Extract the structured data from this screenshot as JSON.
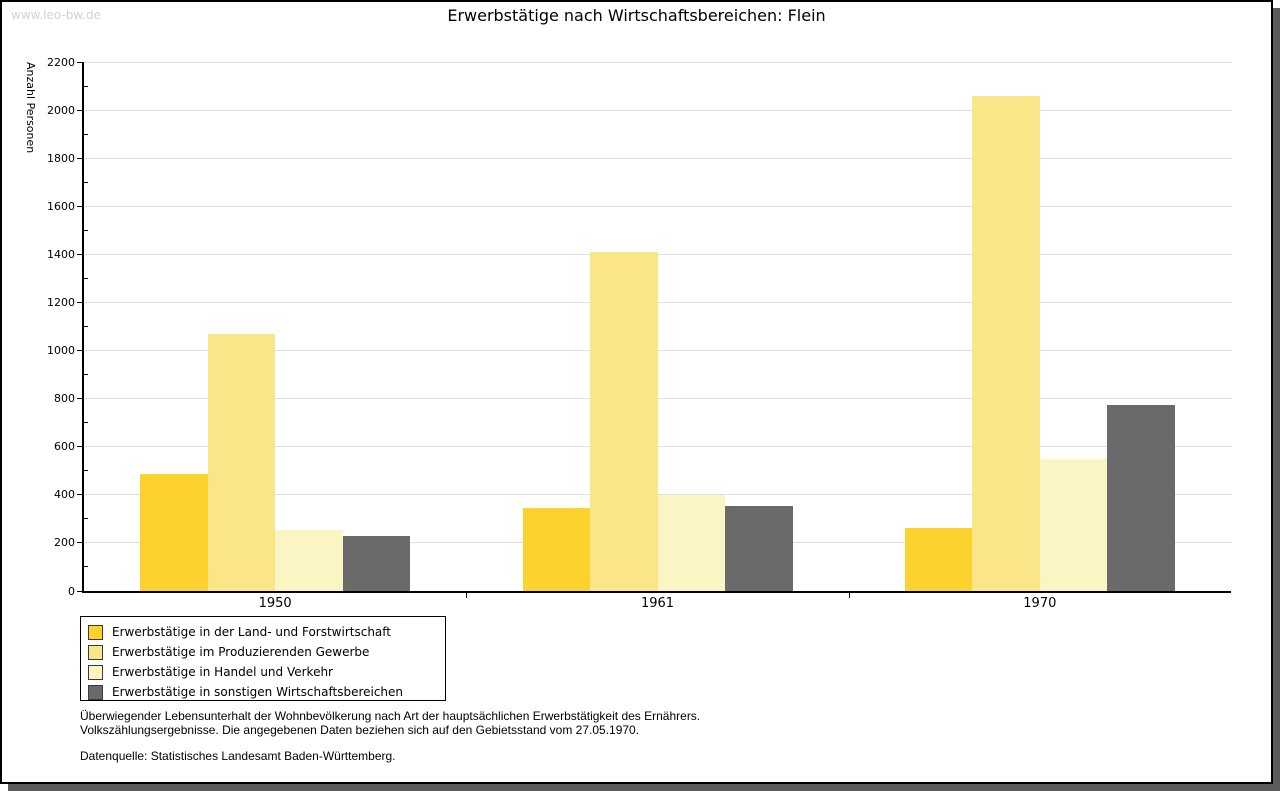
{
  "watermark": "www.leo-bw.de",
  "chart_data": {
    "type": "bar",
    "title": "Erwerbstätige nach Wirtschaftsbereichen: Flein",
    "ylabel": "Anzahl Personen",
    "xlabel": "",
    "ylim": [
      0,
      2200
    ],
    "yticks": [
      0,
      200,
      400,
      600,
      800,
      1000,
      1200,
      1400,
      1600,
      1800,
      2000,
      2200
    ],
    "minor_tick_step": 100,
    "grid": true,
    "legend_position": "bottom-left",
    "categories": [
      "1950",
      "1961",
      "1970"
    ],
    "series": [
      {
        "name": "Erwerbstätige in der Land- und Forstwirtschaft",
        "color": "#FDD22E",
        "values": [
          485,
          345,
          260
        ]
      },
      {
        "name": "Erwerbstätige im Produzierenden Gewerbe",
        "color": "#FAE689",
        "values": [
          1070,
          1410,
          2060
        ]
      },
      {
        "name": "Erwerbstätige in Handel und Verkehr",
        "color": "#FBF5C3",
        "values": [
          255,
          400,
          550
        ]
      },
      {
        "name": "Erwerbstätige in sonstigen Wirtschaftsbereichen",
        "color": "#6A6A6A",
        "values": [
          230,
          355,
          775
        ]
      }
    ]
  },
  "footnotes": {
    "line1": "Überwiegender Lebensunterhalt der Wohnbevölkerung nach Art der hauptsächlichen Erwerbstätigkeit des Ernährers.",
    "line2": "Volkszählungsergebnisse. Die angegebenen Daten beziehen sich auf den Gebietsstand vom 27.05.1970.",
    "source": "Datenquelle: Statistisches Landesamt Baden-Württemberg."
  }
}
